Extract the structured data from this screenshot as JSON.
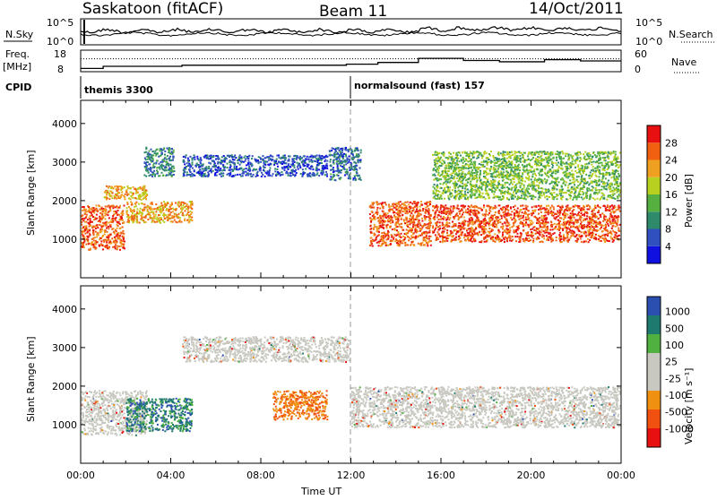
{
  "header": {
    "station": "Saskatoon (fitACF)",
    "beam": "Beam 11",
    "date": "14/Oct/2011"
  },
  "colors": {
    "power": [
      "#1010e0",
      "#3050c0",
      "#2e8a6a",
      "#55b040",
      "#b8d020",
      "#f0a020",
      "#f06010",
      "#e81010"
    ],
    "velocity": [
      "#e81010",
      "#f05010",
      "#f09010",
      "#c8c8c0",
      "#c8c8c0",
      "#50b040",
      "#1e7a6e",
      "#2a4fb0"
    ]
  },
  "chart_data": [
    {
      "type": "line",
      "name": "noise-panel",
      "left_label": "N.Sky",
      "right_label": "N.Search",
      "left_ticks": [
        "10^5",
        "10^0"
      ],
      "right_ticks": [
        "10^5",
        "10^0"
      ],
      "x": [
        "00:00",
        "04:00",
        "08:00",
        "12:00",
        "16:00",
        "20:00",
        "00:00"
      ]
    },
    {
      "type": "line",
      "name": "freq-nave-panel",
      "left_label_1": "Freq.",
      "left_label_2": "[MHz]",
      "right_label": "Nave",
      "left_ticks": [
        "18",
        "8"
      ],
      "right_ticks": [
        "60",
        "0"
      ],
      "freq_steps": [
        {
          "t": 0.0,
          "v": 9.5
        },
        {
          "t": 1.0,
          "v": 10.5
        },
        {
          "t": 4.5,
          "v": 11.0
        },
        {
          "t": 11.8,
          "v": 11.5
        },
        {
          "t": 13.2,
          "v": 12.3
        },
        {
          "t": 15.0,
          "v": 14.2
        },
        {
          "t": 17.0,
          "v": 13.2
        },
        {
          "t": 18.6,
          "v": 12.6
        },
        {
          "t": 20.6,
          "v": 13.6
        },
        {
          "t": 22.2,
          "v": 13.0
        },
        {
          "t": 24.0,
          "v": 13.0
        }
      ],
      "nave_level": 36
    },
    {
      "type": "table",
      "name": "cpid",
      "label": "CPID",
      "programs": [
        {
          "name": "themis 3300",
          "start": "00:00"
        },
        {
          "name": "normalsound (fast) 157",
          "start": "12:00"
        }
      ]
    },
    {
      "type": "heatmap",
      "name": "power-panel",
      "ylabel": "Slant Range [km]",
      "y_ticks": [
        1000,
        2000,
        3000,
        4000
      ],
      "ylim": [
        0,
        4600
      ],
      "xlim": [
        0,
        24
      ],
      "colorbar": {
        "label": "Power [dB]",
        "ticks": [
          4,
          8,
          12,
          16,
          20,
          24,
          28
        ],
        "range": [
          0,
          32
        ]
      },
      "regions": [
        {
          "t0": 0.0,
          "t1": 2.0,
          "r0": 700,
          "r1": 1900,
          "value": 26
        },
        {
          "t0": 2.0,
          "t1": 5.0,
          "r0": 1400,
          "r1": 2000,
          "value": 22
        },
        {
          "t0": 1.0,
          "t1": 3.0,
          "r0": 2000,
          "r1": 2400,
          "value": 22
        },
        {
          "t0": 2.8,
          "t1": 4.2,
          "r0": 2600,
          "r1": 3400,
          "value": 10
        },
        {
          "t0": 4.5,
          "t1": 11.0,
          "r0": 2600,
          "r1": 3200,
          "value": 6
        },
        {
          "t0": 11.0,
          "t1": 12.5,
          "r0": 2500,
          "r1": 3400,
          "value": 8
        },
        {
          "t0": 12.8,
          "t1": 15.6,
          "r0": 800,
          "r1": 2000,
          "value": 26
        },
        {
          "t0": 15.6,
          "t1": 24.0,
          "r0": 900,
          "r1": 1900,
          "value": 27
        },
        {
          "t0": 15.6,
          "t1": 24.0,
          "r0": 2000,
          "r1": 3300,
          "value": 15
        }
      ]
    },
    {
      "type": "heatmap",
      "name": "velocity-panel",
      "ylabel": "Slant Range [km]",
      "y_ticks": [
        1000,
        2000,
        3000,
        4000
      ],
      "ylim": [
        0,
        4600
      ],
      "xlim": [
        0,
        24
      ],
      "colorbar": {
        "label": "Velocity [m s⁻¹]",
        "ticks": [
          "1000",
          "500",
          "100",
          "25",
          "-25",
          "-100",
          "-500",
          "-1000"
        ]
      },
      "regions": [
        {
          "t0": 0.0,
          "t1": 3.0,
          "r0": 700,
          "r1": 1900,
          "value": 0
        },
        {
          "t0": 2.0,
          "t1": 5.0,
          "r0": 800,
          "r1": 1700,
          "value": 300
        },
        {
          "t0": 4.5,
          "t1": 12.0,
          "r0": 2600,
          "r1": 3300,
          "value": 0
        },
        {
          "t0": 8.5,
          "t1": 11.0,
          "r0": 1100,
          "r1": 1900,
          "value": -300
        },
        {
          "t0": 12.0,
          "t1": 24.0,
          "r0": 900,
          "r1": 2000,
          "value": 0
        }
      ],
      "xlabel": "Time UT",
      "x_ticks": [
        "00:00",
        "04:00",
        "08:00",
        "12:00",
        "16:00",
        "20:00",
        "00:00"
      ]
    }
  ]
}
